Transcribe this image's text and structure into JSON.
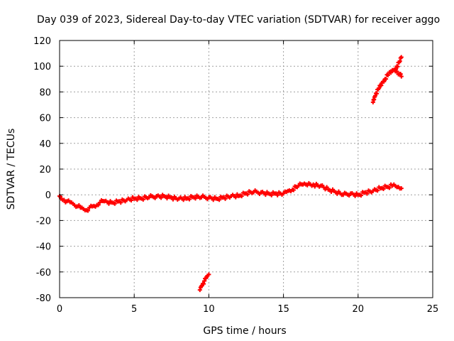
{
  "chart_data": {
    "type": "scatter",
    "title": "Day 039 of 2023, Sidereal Day-to-day VTEC variation (SDTVAR) for receiver aggo",
    "xlabel": "GPS time / hours",
    "ylabel": "SDTVAR / TECUs",
    "xlim": [
      0,
      25
    ],
    "ylim": [
      -80,
      120
    ],
    "xticks": [
      0,
      5,
      10,
      15,
      20,
      25
    ],
    "xtick_labels": [
      "0",
      "5",
      "10",
      "15",
      "20",
      "25"
    ],
    "yticks": [
      -80,
      -60,
      -40,
      -20,
      0,
      20,
      40,
      60,
      80,
      100,
      120
    ],
    "ytick_labels": [
      "-80",
      "-60",
      "-40",
      "-20",
      "0",
      "20",
      "40",
      "60",
      "80",
      "100",
      "120"
    ],
    "grid": true,
    "marker": "+",
    "color": "#ff0000",
    "series": [
      {
        "name": "main trace",
        "points": [
          [
            0.0,
            -1
          ],
          [
            0.1,
            -3
          ],
          [
            0.3,
            -4
          ],
          [
            0.5,
            -5
          ],
          [
            0.8,
            -6
          ],
          [
            1.0,
            -8
          ],
          [
            1.2,
            -9
          ],
          [
            1.4,
            -10
          ],
          [
            1.6,
            -11
          ],
          [
            1.8,
            -12
          ],
          [
            2.0,
            -10
          ],
          [
            2.2,
            -9
          ],
          [
            2.5,
            -8
          ],
          [
            2.7,
            -6
          ],
          [
            3.0,
            -5
          ],
          [
            3.5,
            -6
          ],
          [
            4.0,
            -5
          ],
          [
            4.5,
            -4
          ],
          [
            5.0,
            -3
          ],
          [
            5.5,
            -3
          ],
          [
            6.0,
            -2
          ],
          [
            6.5,
            -1
          ],
          [
            7.0,
            -1
          ],
          [
            7.5,
            -2
          ],
          [
            8.0,
            -3
          ],
          [
            8.5,
            -3
          ],
          [
            9.0,
            -2
          ],
          [
            9.5,
            -2
          ],
          [
            10.0,
            -2
          ],
          [
            10.5,
            -3
          ],
          [
            11.0,
            -2
          ],
          [
            11.5,
            -1
          ],
          [
            12.0,
            -1
          ],
          [
            12.5,
            1
          ],
          [
            13.0,
            2
          ],
          [
            13.5,
            2
          ],
          [
            14.0,
            1
          ],
          [
            14.5,
            1
          ],
          [
            15.0,
            1
          ],
          [
            15.3,
            3
          ],
          [
            15.6,
            4
          ],
          [
            16.0,
            7
          ],
          [
            16.3,
            8
          ],
          [
            16.7,
            9
          ],
          [
            17.0,
            8
          ],
          [
            17.5,
            7
          ],
          [
            18.0,
            4
          ],
          [
            18.5,
            2
          ],
          [
            19.0,
            0
          ],
          [
            19.5,
            1
          ],
          [
            20.0,
            0
          ],
          [
            20.5,
            2
          ],
          [
            21.0,
            3
          ],
          [
            21.5,
            5
          ],
          [
            22.0,
            6
          ],
          [
            22.3,
            7
          ],
          [
            22.6,
            6
          ],
          [
            22.9,
            5
          ]
        ]
      },
      {
        "name": "lower arc",
        "points": [
          [
            9.4,
            -74
          ],
          [
            9.5,
            -71
          ],
          [
            9.6,
            -69
          ],
          [
            9.7,
            -67
          ],
          [
            9.8,
            -65
          ],
          [
            9.9,
            -63
          ],
          [
            10.0,
            -62
          ]
        ]
      },
      {
        "name": "upper arc rising",
        "points": [
          [
            21.0,
            72
          ],
          [
            21.1,
            76
          ],
          [
            21.2,
            79
          ],
          [
            21.4,
            83
          ],
          [
            21.6,
            87
          ],
          [
            21.8,
            90
          ],
          [
            22.0,
            93
          ],
          [
            22.2,
            95
          ],
          [
            22.4,
            97
          ],
          [
            22.6,
            100
          ],
          [
            22.8,
            104
          ],
          [
            22.9,
            107
          ]
        ]
      },
      {
        "name": "upper arc falling",
        "points": [
          [
            22.2,
            96
          ],
          [
            22.4,
            97
          ],
          [
            22.6,
            96
          ],
          [
            22.8,
            94
          ],
          [
            22.9,
            92
          ]
        ]
      }
    ]
  }
}
